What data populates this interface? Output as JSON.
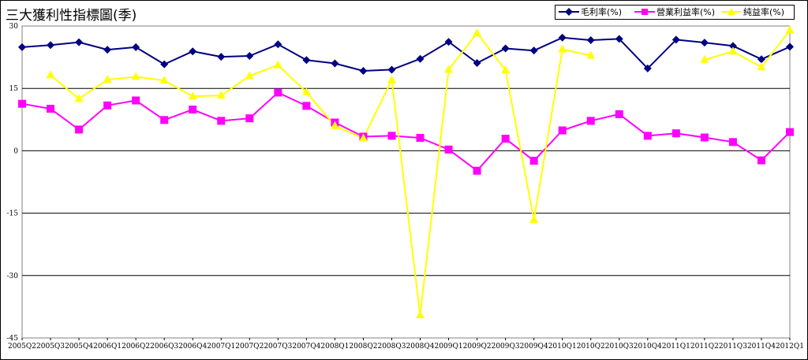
{
  "chart_data": {
    "type": "line",
    "title": "三大獲利性指標圖(季)",
    "xlabel": "",
    "ylabel": "",
    "ylim": [
      -45,
      30
    ],
    "yticks": [
      30,
      15,
      0,
      -15,
      -30,
      -45
    ],
    "ytick_labels": [
      "30",
      "15",
      "0",
      "-15",
      "-30",
      "-45"
    ],
    "grid": true,
    "legend_position": "top-right",
    "categories": [
      "2005Q2",
      "2005Q3",
      "2005Q4",
      "2006Q1",
      "2006Q2",
      "2006Q3",
      "2006Q4",
      "2007Q1",
      "2007Q2",
      "2007Q3",
      "2007Q4",
      "2008Q1",
      "2008Q2",
      "2008Q3",
      "2008Q4",
      "2009Q1",
      "2009Q2",
      "2009Q3",
      "2009Q4",
      "2010Q1",
      "2010Q2",
      "2010Q3",
      "2010Q4",
      "2011Q1",
      "2011Q2",
      "2011Q3",
      "2011Q4",
      "2012Q1"
    ],
    "series": [
      {
        "name": "毛利率(%)",
        "color": "#000080",
        "marker": "diamond",
        "values": [
          24.9,
          25.4,
          26.1,
          24.3,
          24.9,
          20.8,
          23.9,
          22.6,
          22.8,
          25.6,
          21.8,
          21.0,
          19.2,
          19.5,
          22.1,
          26.2,
          21.1,
          24.6,
          24.1,
          27.2,
          26.6,
          26.9,
          19.8,
          26.7,
          26.0,
          25.2,
          22.0,
          25.0
        ]
      },
      {
        "name": "營業利益率(%)",
        "color": "#ff00ff",
        "marker": "square",
        "values": [
          11.3,
          10.1,
          5.1,
          10.9,
          12.1,
          7.4,
          9.9,
          7.2,
          7.8,
          14.0,
          10.8,
          6.8,
          3.4,
          3.6,
          3.1,
          0.3,
          -4.8,
          2.9,
          -2.4,
          4.9,
          7.2,
          8.8,
          3.6,
          4.2,
          3.2,
          2.1,
          -2.3,
          4.5
        ]
      },
      {
        "name": "純益率(%)",
        "color": "#ffff00",
        "marker": "triangle",
        "values": [
          null,
          18.2,
          12.5,
          17.1,
          17.8,
          16.9,
          13.1,
          13.3,
          18.0,
          20.6,
          14.1,
          6.0,
          3.0,
          17.0,
          -39.5,
          19.5,
          28.3,
          19.4,
          -16.6,
          24.4,
          22.9,
          null,
          null,
          null,
          21.9,
          23.9,
          20.1,
          29.0
        ]
      }
    ]
  }
}
